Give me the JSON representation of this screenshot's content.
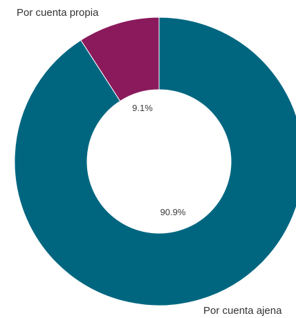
{
  "chart_data": {
    "type": "pie",
    "variant": "donut",
    "categories": [
      "Por cuenta ajena",
      "Por cuenta propia"
    ],
    "values": [
      90.9,
      9.1
    ],
    "value_labels": [
      "90.9%",
      "9.1%"
    ],
    "colors": [
      "#006680",
      "#8a1a5c"
    ],
    "start": "12 o'clock",
    "direction": "clockwise",
    "title": "",
    "legend": "none"
  }
}
